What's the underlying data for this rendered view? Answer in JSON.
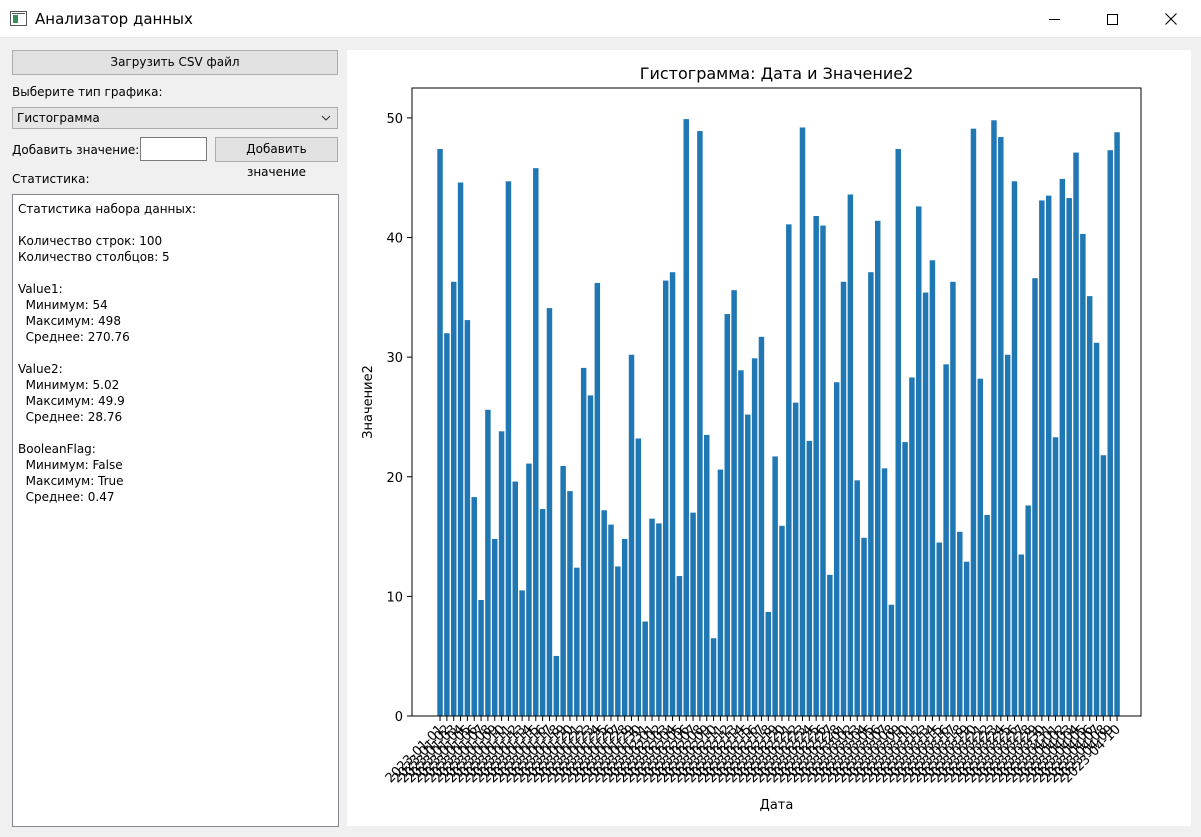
{
  "window": {
    "title": "Анализатор данных"
  },
  "sidebar": {
    "load_button": "Загрузить CSV файл",
    "chart_type_label": "Выберите тип графика:",
    "chart_type_value": "Гистограмма",
    "add_value_label": "Добавить значение:",
    "add_value_input": "",
    "add_value_button": "Добавить значение",
    "stats_label": "Статистика:",
    "stats_lines": [
      "Статистика набора данных:",
      "",
      "Количество строк: 100",
      "Количество столбцов: 5",
      "",
      "Value1:",
      "  Минимум: 54",
      "  Максимум: 498",
      "  Среднее: 270.76",
      "",
      "Value2:",
      "  Минимум: 5.02",
      "  Максимум: 49.9",
      "  Среднее: 28.76",
      "",
      "BooleanFlag:",
      "  Минимум: False",
      "  Максимум: True",
      "  Среднее: 0.47"
    ]
  },
  "chart_data": {
    "type": "bar",
    "title": "Гистограмма: Дата и Значение2",
    "xlabel": "Дата",
    "ylabel": "Значение2",
    "ylim": [
      0,
      52.5
    ],
    "yticks": [
      0,
      10,
      20,
      30,
      40,
      50
    ],
    "tick_rotation": 45,
    "color": "#1f77b4",
    "first_date": "2023-01-01",
    "categories": [
      "2023-01-01",
      "2023-01-02",
      "2023-01-03",
      "2023-01-04",
      "2023-01-05",
      "2023-01-06",
      "2023-01-07",
      "2023-01-08",
      "2023-01-09",
      "2023-01-10",
      "2023-01-11",
      "2023-01-12",
      "2023-01-13",
      "2023-01-14",
      "2023-01-15",
      "2023-01-16",
      "2023-01-17",
      "2023-01-18",
      "2023-01-19",
      "2023-01-20",
      "2023-01-21",
      "2023-01-22",
      "2023-01-23",
      "2023-01-24",
      "2023-01-25",
      "2023-01-26",
      "2023-01-27",
      "2023-01-28",
      "2023-01-29",
      "2023-01-30",
      "2023-01-31",
      "2023-02-01",
      "2023-02-02",
      "2023-02-03",
      "2023-02-04",
      "2023-02-05",
      "2023-02-06",
      "2023-02-07",
      "2023-02-08",
      "2023-02-09",
      "2023-02-10",
      "2023-02-11",
      "2023-02-12",
      "2023-02-13",
      "2023-02-14",
      "2023-02-15",
      "2023-02-16",
      "2023-02-17",
      "2023-02-18",
      "2023-02-19",
      "2023-02-20",
      "2023-02-21",
      "2023-02-22",
      "2023-02-23",
      "2023-02-24",
      "2023-02-25",
      "2023-02-26",
      "2023-02-27",
      "2023-02-28",
      "2023-03-01",
      "2023-03-02",
      "2023-03-03",
      "2023-03-04",
      "2023-03-05",
      "2023-03-06",
      "2023-03-07",
      "2023-03-08",
      "2023-03-09",
      "2023-03-10",
      "2023-03-11",
      "2023-03-12",
      "2023-03-13",
      "2023-03-14",
      "2023-03-15",
      "2023-03-16",
      "2023-03-17",
      "2023-03-18",
      "2023-03-19",
      "2023-03-20",
      "2023-03-21",
      "2023-03-22",
      "2023-03-23",
      "2023-03-24",
      "2023-03-25",
      "2023-03-26",
      "2023-03-27",
      "2023-03-28",
      "2023-03-29",
      "2023-03-30",
      "2023-03-31",
      "2023-04-01",
      "2023-04-02",
      "2023-04-03",
      "2023-04-04",
      "2023-04-05",
      "2023-04-06",
      "2023-04-07",
      "2023-04-08",
      "2023-04-09",
      "2023-04-10"
    ],
    "values": [
      47.4,
      32.0,
      36.3,
      44.6,
      33.1,
      18.3,
      9.7,
      25.6,
      14.8,
      23.8,
      44.7,
      19.6,
      10.5,
      21.1,
      45.8,
      17.3,
      34.1,
      5.02,
      20.9,
      18.8,
      12.4,
      29.1,
      26.8,
      36.2,
      17.2,
      16.0,
      12.5,
      14.8,
      30.2,
      23.2,
      7.9,
      16.5,
      16.1,
      36.4,
      37.1,
      11.7,
      49.9,
      17.0,
      48.9,
      23.5,
      6.5,
      20.6,
      33.6,
      35.6,
      28.9,
      25.2,
      29.9,
      31.7,
      8.7,
      21.7,
      15.9,
      41.1,
      26.2,
      49.2,
      23.0,
      41.8,
      41.0,
      11.8,
      27.9,
      36.3,
      43.6,
      19.7,
      14.9,
      37.1,
      41.4,
      20.7,
      9.3,
      47.4,
      22.9,
      28.3,
      42.6,
      35.4,
      38.1,
      14.5,
      29.4,
      36.3,
      15.4,
      12.9,
      49.1,
      28.2,
      16.8,
      49.8,
      48.4,
      30.2,
      44.7,
      13.5,
      17.6,
      36.6,
      43.1,
      43.5,
      23.3,
      44.9,
      43.3,
      47.1,
      40.3,
      35.1,
      31.2,
      21.8,
      47.3,
      48.8
    ]
  }
}
